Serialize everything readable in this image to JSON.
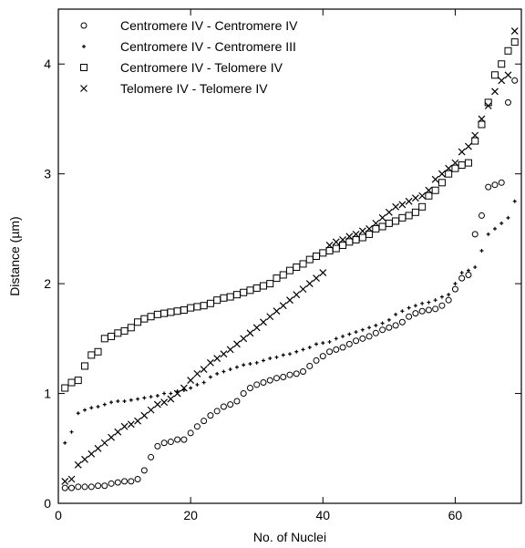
{
  "chart_data": {
    "type": "scatter",
    "xlabel": "No. of Nuclei",
    "ylabel": "Distance (µm)",
    "xlim": [
      0,
      70
    ],
    "ylim": [
      0,
      4.5
    ],
    "x_ticks": [
      "0",
      "20",
      "40",
      "60"
    ],
    "y_ticks": [
      "0",
      "1",
      "2",
      "3",
      "4"
    ],
    "grid": false,
    "legend_position": "top-left",
    "series": [
      {
        "name": "Centromere IV - Centromere IV",
        "marker": "circle",
        "x": [
          1,
          2,
          3,
          4,
          5,
          6,
          7,
          8,
          9,
          10,
          11,
          12,
          13,
          14,
          15,
          16,
          17,
          18,
          19,
          20,
          21,
          22,
          23,
          24,
          25,
          26,
          27,
          28,
          29,
          30,
          31,
          32,
          33,
          34,
          35,
          36,
          37,
          38,
          39,
          40,
          41,
          42,
          43,
          44,
          45,
          46,
          47,
          48,
          49,
          50,
          51,
          52,
          53,
          54,
          55,
          56,
          57,
          58,
          59,
          60,
          61,
          62,
          63,
          64,
          65,
          66,
          67,
          68,
          69
        ],
        "y": [
          0.14,
          0.14,
          0.15,
          0.15,
          0.15,
          0.16,
          0.16,
          0.18,
          0.19,
          0.2,
          0.2,
          0.22,
          0.3,
          0.42,
          0.52,
          0.55,
          0.56,
          0.58,
          0.58,
          0.64,
          0.7,
          0.75,
          0.8,
          0.84,
          0.88,
          0.9,
          0.93,
          1.0,
          1.05,
          1.08,
          1.1,
          1.12,
          1.14,
          1.15,
          1.17,
          1.18,
          1.2,
          1.25,
          1.3,
          1.34,
          1.38,
          1.4,
          1.42,
          1.45,
          1.48,
          1.5,
          1.52,
          1.55,
          1.58,
          1.6,
          1.62,
          1.65,
          1.7,
          1.73,
          1.75,
          1.76,
          1.77,
          1.8,
          1.85,
          1.95,
          2.05,
          2.08,
          2.45,
          2.62,
          2.88,
          2.9,
          2.92,
          3.65,
          3.85
        ]
      },
      {
        "name": "Centromere IV - Centromere III",
        "marker": "plus",
        "x": [
          1,
          2,
          3,
          4,
          5,
          6,
          7,
          8,
          9,
          10,
          11,
          12,
          13,
          14,
          15,
          16,
          17,
          18,
          19,
          20,
          21,
          22,
          23,
          24,
          25,
          26,
          27,
          28,
          29,
          30,
          31,
          32,
          33,
          34,
          35,
          36,
          37,
          38,
          39,
          40,
          41,
          42,
          43,
          44,
          45,
          46,
          47,
          48,
          49,
          50,
          51,
          52,
          53,
          54,
          55,
          56,
          57,
          58,
          59,
          60,
          61,
          62,
          63,
          64,
          65,
          66,
          67,
          68,
          69
        ],
        "y": [
          0.55,
          0.65,
          0.82,
          0.85,
          0.87,
          0.88,
          0.9,
          0.92,
          0.93,
          0.93,
          0.94,
          0.95,
          0.96,
          0.97,
          0.98,
          1.0,
          1.0,
          1.02,
          1.03,
          1.05,
          1.08,
          1.1,
          1.15,
          1.18,
          1.2,
          1.22,
          1.24,
          1.26,
          1.27,
          1.28,
          1.3,
          1.32,
          1.33,
          1.35,
          1.36,
          1.38,
          1.4,
          1.42,
          1.45,
          1.46,
          1.47,
          1.5,
          1.52,
          1.54,
          1.56,
          1.58,
          1.6,
          1.62,
          1.64,
          1.67,
          1.72,
          1.75,
          1.78,
          1.8,
          1.82,
          1.83,
          1.85,
          1.88,
          1.9,
          2.0,
          2.1,
          2.12,
          2.15,
          2.3,
          2.45,
          2.5,
          2.55,
          2.6,
          2.75
        ]
      },
      {
        "name": "Centromere IV - Telomere IV",
        "marker": "square",
        "x": [
          1,
          2,
          3,
          4,
          5,
          6,
          7,
          8,
          9,
          10,
          11,
          12,
          13,
          14,
          15,
          16,
          17,
          18,
          19,
          20,
          21,
          22,
          23,
          24,
          25,
          26,
          27,
          28,
          29,
          30,
          31,
          32,
          33,
          34,
          35,
          36,
          37,
          38,
          39,
          40,
          41,
          42,
          43,
          44,
          45,
          46,
          47,
          48,
          49,
          50,
          51,
          52,
          53,
          54,
          55,
          56,
          57,
          58,
          59,
          60,
          61,
          62,
          63,
          64,
          65,
          66,
          67,
          68,
          69
        ],
        "y": [
          1.05,
          1.1,
          1.12,
          1.25,
          1.35,
          1.38,
          1.5,
          1.52,
          1.55,
          1.57,
          1.6,
          1.65,
          1.68,
          1.7,
          1.72,
          1.73,
          1.74,
          1.75,
          1.76,
          1.78,
          1.79,
          1.8,
          1.82,
          1.85,
          1.87,
          1.88,
          1.9,
          1.92,
          1.94,
          1.96,
          1.98,
          2.0,
          2.05,
          2.08,
          2.12,
          2.15,
          2.18,
          2.22,
          2.25,
          2.28,
          2.3,
          2.32,
          2.35,
          2.38,
          2.4,
          2.42,
          2.45,
          2.5,
          2.52,
          2.55,
          2.57,
          2.6,
          2.62,
          2.65,
          2.7,
          2.8,
          2.85,
          2.92,
          3.0,
          3.05,
          3.08,
          3.1,
          3.3,
          3.45,
          3.65,
          3.9,
          4.0,
          4.12,
          4.2
        ]
      },
      {
        "name": "Telomere IV - Telomere IV",
        "marker": "cross",
        "x": [
          1,
          2,
          3,
          4,
          5,
          6,
          7,
          8,
          9,
          10,
          11,
          12,
          13,
          14,
          15,
          16,
          17,
          18,
          19,
          20,
          21,
          22,
          23,
          24,
          25,
          26,
          27,
          28,
          29,
          30,
          31,
          32,
          33,
          34,
          35,
          36,
          37,
          38,
          39,
          40,
          41,
          42,
          43,
          44,
          45,
          46,
          47,
          48,
          49,
          50,
          51,
          52,
          53,
          54,
          55,
          56,
          57,
          58,
          59,
          60,
          61,
          62,
          63,
          64,
          65,
          66,
          67,
          68,
          69
        ],
        "y": [
          0.2,
          0.22,
          0.35,
          0.4,
          0.45,
          0.5,
          0.55,
          0.6,
          0.65,
          0.7,
          0.72,
          0.75,
          0.8,
          0.85,
          0.9,
          0.92,
          0.95,
          1.0,
          1.05,
          1.12,
          1.18,
          1.22,
          1.28,
          1.32,
          1.36,
          1.4,
          1.45,
          1.5,
          1.55,
          1.6,
          1.65,
          1.7,
          1.75,
          1.8,
          1.85,
          1.9,
          1.95,
          2.0,
          2.05,
          2.1,
          2.35,
          2.38,
          2.4,
          2.43,
          2.45,
          2.48,
          2.5,
          2.55,
          2.6,
          2.65,
          2.7,
          2.72,
          2.75,
          2.78,
          2.8,
          2.85,
          2.95,
          3.0,
          3.05,
          3.1,
          3.2,
          3.25,
          3.35,
          3.5,
          3.62,
          3.75,
          3.85,
          3.9,
          4.3
        ]
      }
    ]
  }
}
